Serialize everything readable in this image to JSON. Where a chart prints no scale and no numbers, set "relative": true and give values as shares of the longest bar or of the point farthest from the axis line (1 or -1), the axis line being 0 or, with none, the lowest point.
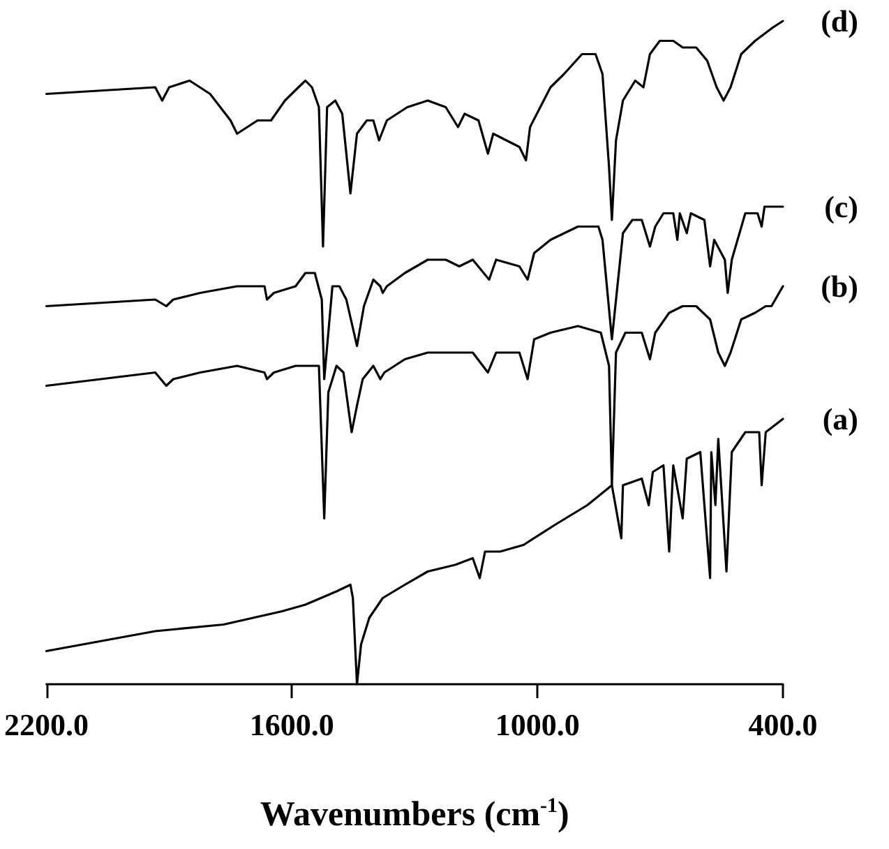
{
  "chart_data": {
    "type": "line",
    "relative": true,
    "xlabel": "Wavenumbers (cm$^{-1}$)",
    "xlim": [
      2200,
      400
    ],
    "xticks": [
      {
        "value": 2200,
        "label": "2200.0"
      },
      {
        "value": 1600,
        "label": "1600.0"
      },
      {
        "value": 1000,
        "label": "1000.0"
      },
      {
        "value": 400,
        "label": "400.0"
      }
    ],
    "series": [
      {
        "name": "(d)",
        "color": "#000000",
        "x": [
          2200,
          1934,
          1917,
          1900,
          1850,
          1800,
          1750,
          1734,
          1684,
          1651,
          1617,
          1584,
          1567,
          1551,
          1534,
          1524,
          1514,
          1494,
          1477,
          1457,
          1441,
          1417,
          1401,
          1387,
          1368,
          1318,
          1268,
          1224,
          1194,
          1178,
          1144,
          1121,
          1108,
          1044,
          1028,
          1018,
          968,
          935,
          891,
          858,
          841,
          825,
          818,
          808,
          791,
          761,
          741,
          725,
          701,
          668,
          645,
          612,
          585,
          562,
          545,
          528,
          502,
          468,
          425,
          400
        ],
        "values": [
          0.89,
          0.9,
          0.88,
          0.9,
          0.91,
          0.89,
          0.85,
          0.83,
          0.85,
          0.85,
          0.88,
          0.9,
          0.91,
          0.9,
          0.87,
          0.66,
          0.87,
          0.88,
          0.86,
          0.74,
          0.83,
          0.85,
          0.85,
          0.82,
          0.85,
          0.87,
          0.88,
          0.87,
          0.84,
          0.86,
          0.85,
          0.8,
          0.83,
          0.81,
          0.79,
          0.84,
          0.9,
          0.92,
          0.95,
          0.95,
          0.92,
          0.78,
          0.7,
          0.82,
          0.88,
          0.91,
          0.9,
          0.95,
          0.97,
          0.97,
          0.96,
          0.96,
          0.94,
          0.9,
          0.88,
          0.9,
          0.95,
          0.97,
          0.99,
          1.0
        ]
      },
      {
        "name": "(c)",
        "color": "#000000",
        "x": [
          2200,
          1934,
          1907,
          1890,
          1824,
          1734,
          1667,
          1661,
          1644,
          1591,
          1567,
          1544,
          1527,
          1521,
          1501,
          1484,
          1467,
          1441,
          1424,
          1401,
          1384,
          1378,
          1368,
          1324,
          1268,
          1224,
          1191,
          1158,
          1118,
          1101,
          1044,
          1024,
          1008,
          968,
          901,
          851,
          841,
          818,
          791,
          768,
          745,
          725,
          712,
          692,
          668,
          658,
          652,
          635,
          625,
          592,
          578,
          568,
          542,
          535,
          525,
          492,
          462,
          452,
          445,
          412,
          400
        ],
        "values": [
          0.57,
          0.58,
          0.57,
          0.58,
          0.59,
          0.6,
          0.6,
          0.58,
          0.59,
          0.6,
          0.62,
          0.62,
          0.58,
          0.46,
          0.6,
          0.6,
          0.58,
          0.51,
          0.57,
          0.61,
          0.6,
          0.59,
          0.6,
          0.62,
          0.64,
          0.64,
          0.63,
          0.64,
          0.61,
          0.64,
          0.63,
          0.61,
          0.65,
          0.67,
          0.69,
          0.69,
          0.67,
          0.52,
          0.68,
          0.7,
          0.7,
          0.66,
          0.69,
          0.71,
          0.71,
          0.67,
          0.71,
          0.68,
          0.71,
          0.7,
          0.63,
          0.67,
          0.64,
          0.59,
          0.64,
          0.71,
          0.71,
          0.69,
          0.72,
          0.72,
          0.72
        ]
      },
      {
        "name": "(b)",
        "color": "#000000",
        "x": [
          2200,
          1934,
          1907,
          1890,
          1824,
          1734,
          1667,
          1661,
          1644,
          1591,
          1557,
          1534,
          1521,
          1511,
          1491,
          1474,
          1454,
          1441,
          1427,
          1401,
          1384,
          1374,
          1324,
          1268,
          1211,
          1158,
          1121,
          1101,
          1044,
          1024,
          1008,
          968,
          901,
          845,
          825,
          818,
          808,
          785,
          745,
          725,
          712,
          678,
          645,
          612,
          578,
          558,
          542,
          528,
          502,
          468,
          442,
          428,
          400
        ],
        "values": [
          0.45,
          0.47,
          0.45,
          0.46,
          0.47,
          0.48,
          0.47,
          0.46,
          0.47,
          0.48,
          0.48,
          0.48,
          0.25,
          0.44,
          0.48,
          0.47,
          0.38,
          0.42,
          0.46,
          0.48,
          0.46,
          0.47,
          0.49,
          0.5,
          0.5,
          0.5,
          0.47,
          0.5,
          0.5,
          0.46,
          0.52,
          0.53,
          0.54,
          0.53,
          0.48,
          0.3,
          0.5,
          0.53,
          0.53,
          0.49,
          0.53,
          0.56,
          0.57,
          0.57,
          0.55,
          0.5,
          0.48,
          0.5,
          0.55,
          0.56,
          0.57,
          0.57,
          0.6
        ]
      },
      {
        "name": "(a)",
        "color": "#000000",
        "x": [
          2200,
          1934,
          1767,
          1624,
          1567,
          1491,
          1457,
          1451,
          1441,
          1431,
          1411,
          1378,
          1324,
          1268,
          1201,
          1158,
          1141,
          1128,
          1091,
          1034,
          958,
          878,
          818,
          795,
          791,
          745,
          728,
          718,
          692,
          678,
          668,
          645,
          635,
          602,
          578,
          575,
          565,
          558,
          538,
          525,
          492,
          458,
          452,
          442,
          400
        ],
        "values": [
          0.05,
          0.08,
          0.09,
          0.11,
          0.12,
          0.14,
          0.15,
          0.13,
          0.0,
          0.06,
          0.1,
          0.13,
          0.15,
          0.17,
          0.18,
          0.19,
          0.16,
          0.2,
          0.2,
          0.21,
          0.24,
          0.27,
          0.3,
          0.22,
          0.3,
          0.31,
          0.27,
          0.32,
          0.33,
          0.2,
          0.33,
          0.25,
          0.34,
          0.35,
          0.16,
          0.35,
          0.27,
          0.37,
          0.17,
          0.35,
          0.38,
          0.38,
          0.3,
          0.38,
          0.4
        ]
      }
    ]
  }
}
